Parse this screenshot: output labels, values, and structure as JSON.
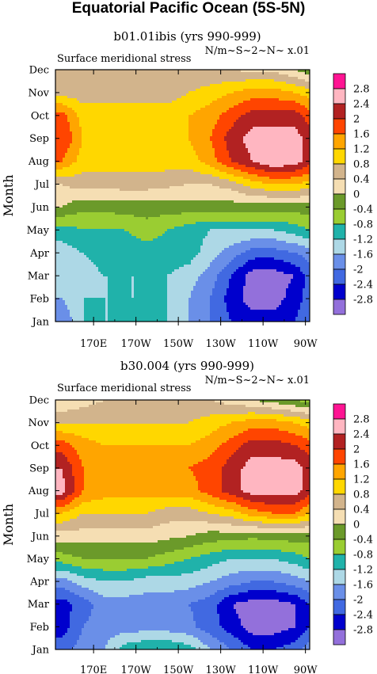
{
  "figure": {
    "title": "Equatorial Pacific Ocean (5S-5N)"
  },
  "chart_data": [
    {
      "type": "heatmap",
      "title": "b01.01ibis (yrs 990-999)",
      "left_label": "Surface meridional stress",
      "right_label": "N/m~S~2~N~ x.01",
      "ylabel": "Month",
      "xlabel": "",
      "x_ticks": [
        "170E",
        "170W",
        "150W",
        "130W",
        "110W",
        "90W"
      ],
      "x_tick_values": [
        170,
        190,
        210,
        230,
        250,
        270
      ],
      "xlim": [
        152,
        272
      ],
      "y_ticks": [
        "Jan",
        "Feb",
        "Mar",
        "Apr",
        "May",
        "Jun",
        "Jul",
        "Aug",
        "Sep",
        "Oct",
        "Nov",
        "Dec"
      ],
      "levels": [
        -2.8,
        -2.4,
        -2,
        -1.6,
        -1.2,
        -0.8,
        -0.4,
        0,
        0.4,
        0.8,
        1.2,
        1.6,
        2,
        2.4,
        2.8
      ],
      "colors": [
        "#9370db",
        "#0000cd",
        "#4169e1",
        "#6a8fe8",
        "#add8e6",
        "#20b2aa",
        "#9acd32",
        "#6b9a2a",
        "#f5deb3",
        "#d2b48c",
        "#ffd700",
        "#ffa500",
        "#ff4500",
        "#b22222",
        "#ffb6c1",
        "#ff1493"
      ],
      "grid": false,
      "lon": [
        155,
        165,
        175,
        185,
        195,
        205,
        215,
        225,
        235,
        245,
        255,
        265,
        272
      ],
      "values": [
        [
          -2.0,
          -1.2,
          -1.2,
          -1.2,
          -1.0,
          -1.2,
          -1.6,
          -2.0,
          -2.4,
          -2.6,
          -2.6,
          -2.4,
          -2.0
        ],
        [
          -1.6,
          -1.2,
          -1.2,
          -1.2,
          -1.2,
          -1.2,
          -1.6,
          -2.0,
          -2.6,
          -3.0,
          -3.0,
          -2.6,
          -2.2
        ],
        [
          -1.6,
          -1.4,
          -1.2,
          -1.2,
          -1.2,
          -1.2,
          -1.4,
          -1.8,
          -2.4,
          -3.0,
          -3.0,
          -2.8,
          -2.2
        ],
        [
          -1.4,
          -1.2,
          -1.0,
          -1.0,
          -1.0,
          -1.0,
          -1.0,
          -1.4,
          -1.8,
          -2.2,
          -2.2,
          -2.0,
          -1.8
        ],
        [
          -1.0,
          -0.8,
          -0.8,
          -0.8,
          -0.6,
          -0.8,
          -1.0,
          -1.2,
          -1.2,
          -1.2,
          -1.2,
          -1.0,
          -0.8
        ],
        [
          0.0,
          -0.3,
          -0.3,
          -0.2,
          -0.2,
          -0.2,
          -0.2,
          -0.2,
          -0.2,
          -0.2,
          -0.2,
          -0.2,
          -0.2
        ],
        [
          0.4,
          0.6,
          0.6,
          0.6,
          0.6,
          0.5,
          0.4,
          0.4,
          0.6,
          1.0,
          1.2,
          1.2,
          1.0
        ],
        [
          1.6,
          1.0,
          1.0,
          1.0,
          1.0,
          1.0,
          1.0,
          1.4,
          2.0,
          2.4,
          2.8,
          2.6,
          2.2
        ],
        [
          2.0,
          1.2,
          1.0,
          1.0,
          1.0,
          1.0,
          1.2,
          1.6,
          2.2,
          2.6,
          2.6,
          2.6,
          2.2
        ],
        [
          1.8,
          1.0,
          1.0,
          1.0,
          1.0,
          1.0,
          1.2,
          1.4,
          1.8,
          2.2,
          2.2,
          2.2,
          1.8
        ],
        [
          0.6,
          0.6,
          0.6,
          0.6,
          0.6,
          0.6,
          0.8,
          1.0,
          1.2,
          1.4,
          1.4,
          1.2,
          1.0
        ],
        [
          0.4,
          0.4,
          0.4,
          0.4,
          0.4,
          0.4,
          0.4,
          0.4,
          0.4,
          0.3,
          0.3,
          0.0,
          -0.3
        ]
      ]
    },
    {
      "type": "heatmap",
      "title": "b30.004 (yrs 990-999)",
      "left_label": "Surface meridional stress",
      "right_label": "N/m~S~2~N~ x.01",
      "ylabel": "Month",
      "xlabel": "",
      "x_ticks": [
        "170E",
        "170W",
        "150W",
        "130W",
        "110W",
        "90W"
      ],
      "x_tick_values": [
        170,
        190,
        210,
        230,
        250,
        270
      ],
      "xlim": [
        152,
        272
      ],
      "y_ticks": [
        "Jan",
        "Feb",
        "Mar",
        "Apr",
        "May",
        "Jun",
        "Jul",
        "Aug",
        "Sep",
        "Oct",
        "Nov",
        "Dec"
      ],
      "levels": [
        -2.8,
        -2.4,
        -2,
        -1.6,
        -1.2,
        -0.8,
        -0.4,
        0,
        0.4,
        0.8,
        1.2,
        1.6,
        2,
        2.4,
        2.8
      ],
      "colors": [
        "#9370db",
        "#0000cd",
        "#4169e1",
        "#6a8fe8",
        "#add8e6",
        "#20b2aa",
        "#9acd32",
        "#6b9a2a",
        "#f5deb3",
        "#d2b48c",
        "#ffd700",
        "#ffa500",
        "#ff4500",
        "#b22222",
        "#ffb6c1",
        "#ff1493"
      ],
      "grid": false,
      "lon": [
        155,
        165,
        175,
        185,
        195,
        205,
        215,
        225,
        235,
        245,
        255,
        265,
        272
      ],
      "values": [
        [
          -2.2,
          -1.8,
          -1.6,
          -1.0,
          -0.8,
          -0.8,
          -1.0,
          -1.6,
          -2.0,
          -2.4,
          -2.4,
          -2.2,
          -1.8
        ],
        [
          -2.6,
          -2.0,
          -1.8,
          -1.8,
          -1.8,
          -1.8,
          -1.9,
          -2.2,
          -2.6,
          -3.0,
          -3.0,
          -2.8,
          -2.4
        ],
        [
          -2.6,
          -2.2,
          -1.8,
          -1.8,
          -1.8,
          -1.8,
          -2.0,
          -2.2,
          -2.8,
          -3.0,
          -3.0,
          -2.8,
          -2.4
        ],
        [
          -1.8,
          -1.4,
          -1.2,
          -1.2,
          -1.4,
          -1.4,
          -1.4,
          -1.6,
          -1.8,
          -2.0,
          -2.0,
          -1.8,
          -1.6
        ],
        [
          -0.6,
          -0.4,
          -0.4,
          -0.4,
          -0.4,
          -0.6,
          -0.8,
          -1.0,
          -1.2,
          -1.2,
          -1.2,
          -1.0,
          -0.8
        ],
        [
          0.2,
          0.2,
          0.2,
          0.2,
          0.2,
          0.1,
          0.0,
          -0.2,
          -0.2,
          -0.3,
          -0.2,
          -0.2,
          -0.2
        ],
        [
          1.2,
          0.8,
          0.8,
          0.8,
          0.8,
          0.6,
          0.6,
          0.8,
          1.0,
          1.4,
          1.6,
          1.6,
          1.2
        ],
        [
          2.6,
          1.6,
          1.4,
          1.4,
          1.4,
          1.4,
          1.4,
          1.8,
          2.2,
          2.6,
          2.6,
          2.6,
          2.2
        ],
        [
          2.4,
          1.6,
          1.4,
          1.4,
          1.4,
          1.4,
          1.6,
          1.8,
          2.2,
          2.6,
          2.6,
          2.6,
          2.2
        ],
        [
          1.8,
          1.4,
          1.2,
          1.2,
          1.2,
          1.2,
          1.2,
          1.4,
          1.8,
          2.2,
          2.2,
          2.0,
          1.8
        ],
        [
          0.8,
          0.8,
          0.8,
          0.8,
          0.8,
          0.8,
          0.8,
          1.0,
          1.2,
          1.4,
          1.4,
          1.2,
          1.0
        ],
        [
          0.0,
          0.2,
          0.4,
          0.4,
          0.6,
          0.6,
          0.4,
          0.4,
          0.2,
          0.0,
          -0.2,
          -0.4,
          -0.6
        ]
      ]
    }
  ]
}
